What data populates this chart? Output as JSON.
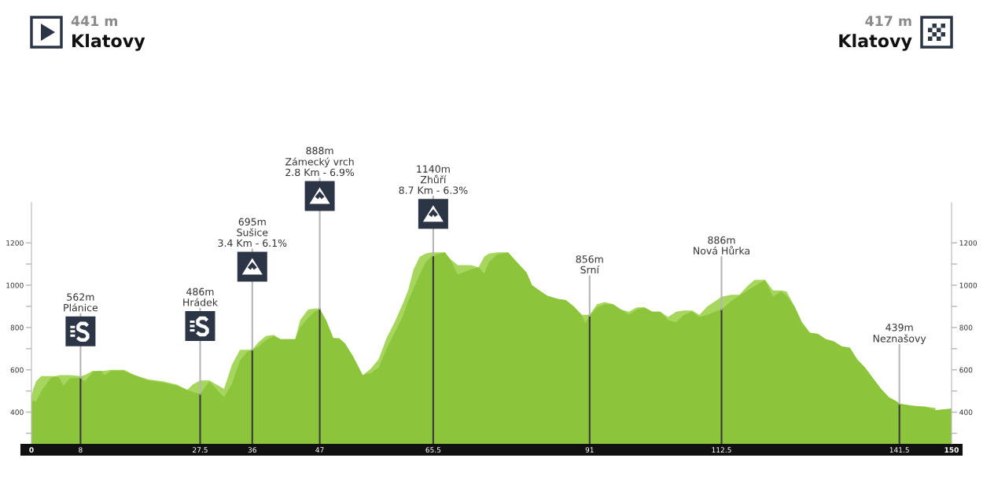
{
  "chart_data": {
    "type": "area",
    "x": [
      0,
      0.3,
      0.75,
      1.6,
      2.5,
      3.1,
      4,
      4.6,
      5.2,
      6.3,
      8,
      8.7,
      10,
      11.3,
      11.9,
      13,
      15.1,
      16.8,
      19,
      21.5,
      23.7,
      25.4,
      26.3,
      27.5,
      29,
      31.4,
      32.7,
      34,
      35.2,
      36,
      37,
      38.2,
      39.5,
      40.6,
      43,
      43.8,
      45.1,
      46.2,
      47,
      48.1,
      49.2,
      50.2,
      51.1,
      52.4,
      54,
      55.3,
      56.6,
      57.9,
      59.2,
      60.5,
      61.4,
      62.3,
      63.3,
      64.3,
      65.2,
      65.5,
      67.4,
      68.2,
      69.5,
      70.4,
      71.7,
      72.9,
      73.8,
      74.6,
      75.9,
      77.7,
      79.4,
      80.7,
      81.6,
      82.8,
      84.1,
      85.8,
      87.1,
      88.4,
      89.7,
      90.3,
      91,
      92.2,
      93.5,
      94.8,
      96.1,
      97.4,
      98.7,
      99.9,
      101.2,
      102.5,
      103.8,
      105.1,
      106.4,
      107.7,
      108.9,
      110.2,
      111.5,
      112.5,
      114.1,
      115.4,
      116.7,
      117.9,
      119.6,
      120.9,
      122.2,
      123.1,
      124.4,
      125.6,
      126.9,
      128.2,
      129.5,
      130.8,
      132.1,
      133.4,
      134.6,
      135.9,
      137.2,
      138.5,
      139.8,
      141.1,
      141.5,
      143.6,
      145.8,
      147.4,
      150
    ],
    "series": [
      {
        "color": "#a6d65e",
        "values": [
          475,
          510,
          545,
          570,
          570,
          570,
          570,
          575,
          575,
          575,
          570,
          575,
          595,
          595,
          595,
          600,
          600,
          575,
          555,
          545,
          530,
          505,
          530,
          550,
          550,
          510,
          625,
          695,
          695,
          695,
          730,
          760,
          765,
          745,
          745,
          835,
          885,
          890,
          890,
          830,
          750,
          750,
          725,
          665,
          575,
          605,
          650,
          750,
          825,
          910,
          975,
          1075,
          1135,
          1150,
          1155,
          1155,
          1155,
          1125,
          1095,
          1095,
          1095,
          1085,
          1135,
          1150,
          1155,
          1155,
          1100,
          1060,
          1000,
          975,
          950,
          935,
          930,
          900,
          860,
          860,
          860,
          910,
          920,
          910,
          885,
          875,
          895,
          895,
          875,
          875,
          850,
          875,
          880,
          880,
          860,
          900,
          925,
          945,
          955,
          955,
          995,
          1025,
          1025,
          975,
          975,
          970,
          900,
          825,
          775,
          770,
          745,
          735,
          710,
          705,
          650,
          610,
          560,
          510,
          470,
          450,
          440,
          430,
          425,
          420,
          null
        ]
      },
      {
        "color": "#8cc43c",
        "values": [
          441,
          455,
          450,
          500,
          535,
          560,
          570,
          560,
          525,
          560,
          562,
          545,
          590,
          595,
          575,
          595,
          595,
          575,
          550,
          540,
          525,
          505,
          495,
          486,
          545,
          470,
          535,
          645,
          685,
          695,
          710,
          740,
          760,
          745,
          745,
          800,
          845,
          875,
          888,
          830,
          750,
          745,
          725,
          665,
          575,
          585,
          610,
          700,
          775,
          850,
          925,
          985,
          1050,
          1110,
          1135,
          1140,
          1155,
          1125,
          1050,
          1060,
          1075,
          1085,
          1055,
          1110,
          1145,
          1155,
          1100,
          1060,
          1000,
          975,
          950,
          935,
          930,
          900,
          860,
          820,
          856,
          895,
          910,
          910,
          885,
          860,
          885,
          895,
          875,
          875,
          835,
          825,
          860,
          875,
          850,
          860,
          875,
          886,
          925,
          950,
          975,
          995,
          1025,
          945,
          970,
          950,
          900,
          825,
          775,
          770,
          745,
          735,
          710,
          705,
          650,
          610,
          560,
          510,
          470,
          450,
          439,
          430,
          425,
          410,
          417
        ]
      }
    ],
    "xlim": [
      0,
      150
    ],
    "xticks": [
      0,
      8,
      27.5,
      36,
      47,
      65.5,
      91,
      112.5,
      141.5,
      150
    ],
    "ylim": [
      250,
      1390
    ],
    "yticks": [
      {
        "value": 300,
        "label": null
      },
      400,
      {
        "value": 500,
        "label": null
      },
      600,
      {
        "value": 700,
        "label": null
      },
      800,
      {
        "value": 900,
        "label": null
      },
      1000,
      {
        "value": 1100,
        "label": null
      },
      1200
    ],
    "y2lim": [
      250,
      1390
    ],
    "y2ticks": [
      {
        "value": 300,
        "label": null
      },
      400,
      {
        "value": 500,
        "label": null
      },
      600,
      {
        "value": 700,
        "label": null
      },
      800,
      {
        "value": 900,
        "label": null
      },
      1000,
      {
        "value": 1100,
        "label": null
      },
      1200
    ],
    "ref_lines": [
      {
        "axis": "x",
        "value": 8,
        "label": "562m\nPlánice"
      },
      {
        "axis": "x",
        "value": 27.5,
        "label": "486m\nHrádek"
      },
      {
        "axis": "x",
        "value": 36,
        "label": "695m\nSušice\n3.4 Km - 6.1%"
      },
      {
        "axis": "x",
        "value": 47,
        "label": "888m\nZámecký vrch\n2.8 Km - 6.9%"
      },
      {
        "axis": "x",
        "value": 65.5,
        "label": "1140m\nZhůří\n8.7 Km - 6.3%"
      },
      {
        "axis": "x",
        "value": 91,
        "label": "856m\nSrní"
      },
      {
        "axis": "x",
        "value": 112.5,
        "label": "886m\nNová Hůrka"
      },
      {
        "axis": "x",
        "value": 141.5,
        "label": "439m\nNeznašovy"
      }
    ],
    "annotations": [
      "441 m",
      "Klatovy",
      "417 m",
      "Klatovy"
    ]
  }
}
